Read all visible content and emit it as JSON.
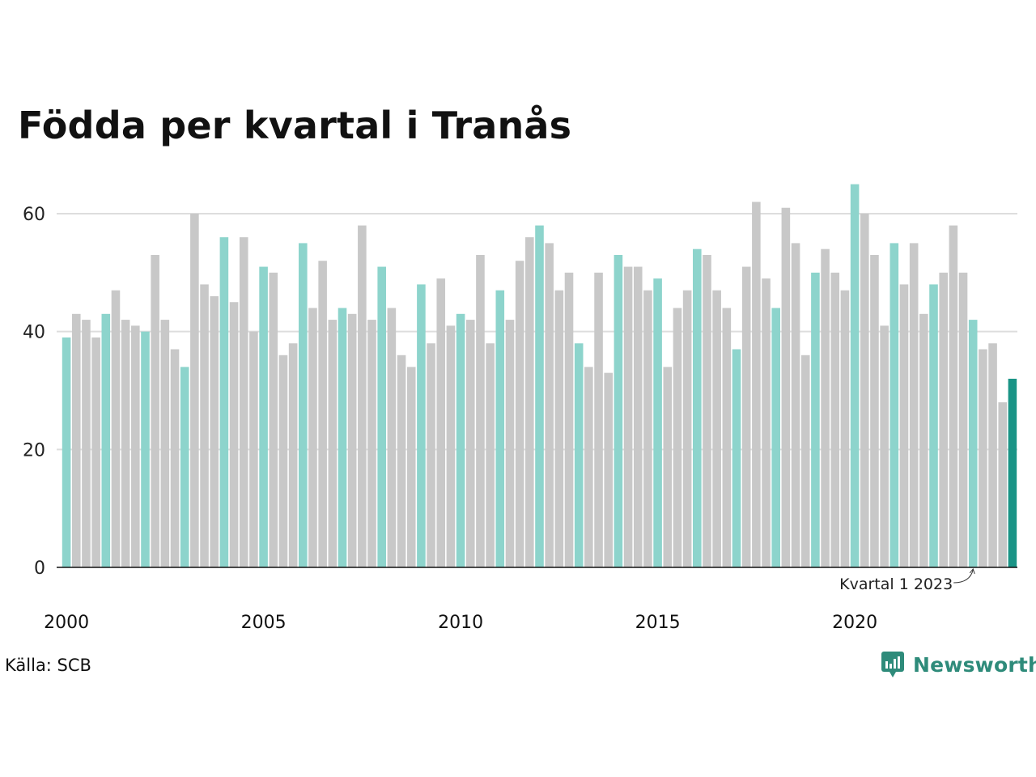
{
  "title": "Födda per kvartal i Tranås",
  "source": "Källa: SCB",
  "brand": "Newsworthy",
  "colors": {
    "q1": "#8dd4cc",
    "other": "#c8c8c8",
    "latest": "#1a9486",
    "grid": "#dddddd",
    "axis": "#111111",
    "brand": "#2e8b7a"
  },
  "chart_data": {
    "type": "bar",
    "start_year": 2000,
    "quarters_per_year": 4,
    "ylim": [
      0,
      65
    ],
    "y_ticks": [
      0,
      20,
      40,
      60
    ],
    "x_ticks": [
      "2000",
      "2005",
      "2010",
      "2015",
      "2020"
    ],
    "annotation": "Kvartal 1 2023",
    "values": [
      39,
      43,
      42,
      39,
      43,
      47,
      42,
      41,
      40,
      53,
      42,
      37,
      34,
      60,
      48,
      46,
      56,
      45,
      56,
      40,
      51,
      50,
      36,
      38,
      55,
      44,
      52,
      42,
      44,
      43,
      58,
      42,
      51,
      44,
      36,
      34,
      48,
      38,
      49,
      41,
      43,
      42,
      53,
      38,
      47,
      42,
      52,
      56,
      58,
      55,
      47,
      50,
      38,
      34,
      50,
      33,
      53,
      51,
      51,
      47,
      49,
      34,
      44,
      47,
      54,
      53,
      47,
      44,
      37,
      51,
      62,
      49,
      44,
      61,
      55,
      36,
      50,
      54,
      50,
      47,
      65,
      60,
      53,
      41,
      55,
      48,
      55,
      43,
      48,
      50,
      58,
      50,
      42,
      37,
      38,
      28,
      32
    ]
  }
}
